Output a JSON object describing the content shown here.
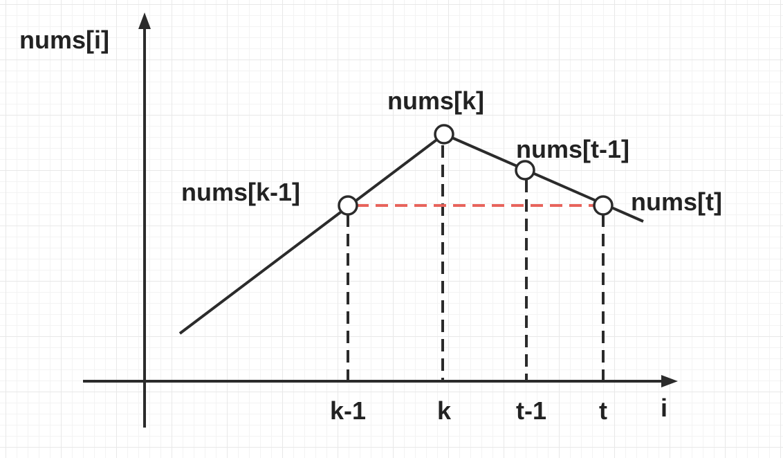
{
  "diagram": {
    "axes": {
      "y_label": "nums[i]",
      "x_label": "i"
    },
    "points": [
      {
        "id": "k-1",
        "label": "nums[k-1]",
        "tick": "k-1"
      },
      {
        "id": "k",
        "label": "nums[k]",
        "tick": "k"
      },
      {
        "id": "t-1",
        "label": "nums[t-1]",
        "tick": "t-1"
      },
      {
        "id": "t",
        "label": "nums[t]",
        "tick": "t"
      }
    ],
    "colors": {
      "line": "#2b2b2b",
      "highlight_dash": "#e8645c",
      "grid": "#e8e8e8"
    }
  }
}
